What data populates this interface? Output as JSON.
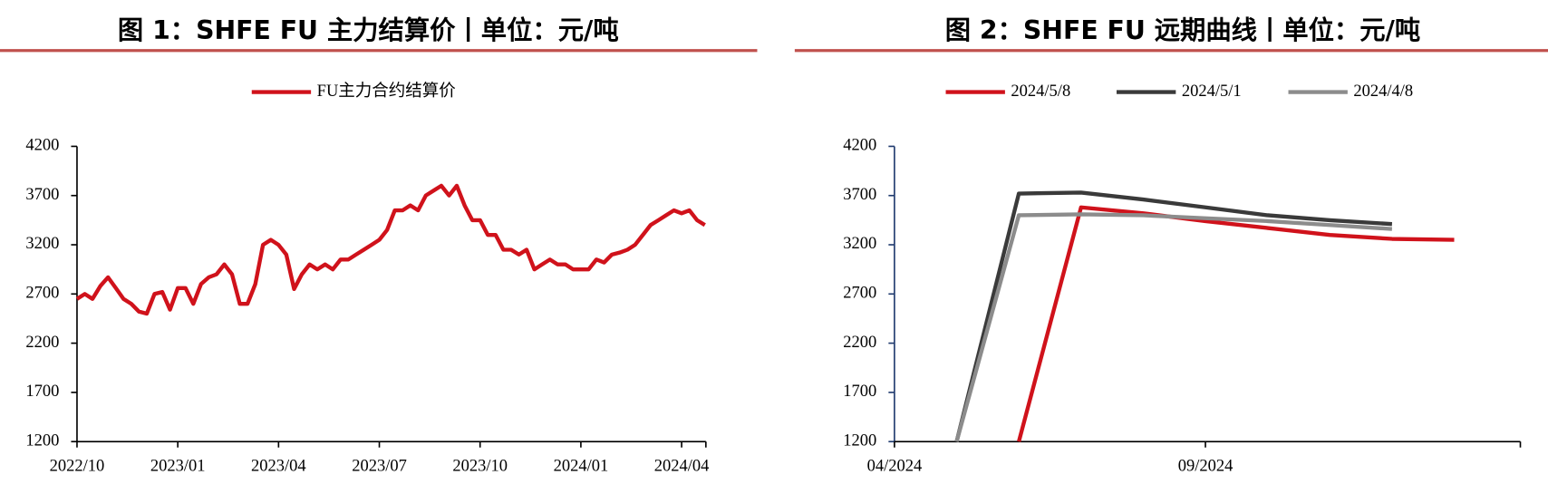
{
  "chart_data": [
    {
      "type": "line",
      "title": "图 1：SHFE FU 主力结算价丨单位：元/吨",
      "legend": "top",
      "axis_color": "#000000",
      "categories": [
        "2022/10",
        null,
        null,
        null,
        null,
        null,
        null,
        null,
        null,
        null,
        null,
        null,
        null,
        "2023/01",
        null,
        null,
        null,
        null,
        null,
        null,
        null,
        null,
        null,
        null,
        null,
        null,
        "2023/04",
        null,
        null,
        null,
        null,
        null,
        null,
        null,
        null,
        null,
        null,
        null,
        null,
        "2023/07",
        null,
        null,
        null,
        null,
        null,
        null,
        null,
        null,
        null,
        null,
        null,
        null,
        "2023/10",
        null,
        null,
        null,
        null,
        null,
        null,
        null,
        null,
        null,
        null,
        null,
        null,
        "2024/01",
        null,
        null,
        null,
        null,
        null,
        null,
        null,
        null,
        null,
        null,
        null,
        null,
        "2024/04",
        null,
        null,
        null
      ],
      "series": [
        {
          "name": "FU主力合约结算价",
          "color": "#d0121b",
          "values": [
            2650,
            2700,
            2650,
            2780,
            2870,
            2760,
            2650,
            2600,
            2520,
            2500,
            2700,
            2720,
            2540,
            2760,
            2760,
            2600,
            2800,
            2870,
            2900,
            3000,
            2900,
            2600,
            2600,
            2800,
            3200,
            3250,
            3200,
            3100,
            2750,
            2900,
            3000,
            2950,
            3000,
            2950,
            3050,
            3050,
            3100,
            3150,
            3200,
            3250,
            3350,
            3550,
            3550,
            3600,
            3550,
            3700,
            3750,
            3800,
            3700,
            3800,
            3600,
            3450,
            3450,
            3300,
            3300,
            3150,
            3150,
            3100,
            3150,
            2950,
            3000,
            3050,
            3000,
            3000,
            2950,
            2950,
            2950,
            3050,
            3020,
            3100,
            3120,
            3150,
            3200,
            3300,
            3400,
            3450,
            3500,
            3550,
            3520,
            3550,
            3450,
            3400
          ]
        }
      ],
      "ylim": [
        1200,
        4200
      ],
      "yticks": [
        1200,
        1700,
        2200,
        2700,
        3200,
        3700,
        4200
      ]
    },
    {
      "type": "line",
      "title": "图 2：SHFE FU 远期曲线丨单位：元/吨",
      "legend": "top",
      "axis_color": "#1f3a6e",
      "categories": [
        "04/2024",
        null,
        null,
        null,
        null,
        "09/2024",
        null,
        null,
        null,
        null,
        null
      ],
      "series": [
        {
          "name": "2024/5/8",
          "color": "#d0121b",
          "values": [
            null,
            null,
            1200,
            3580,
            3520,
            3440,
            3370,
            3300,
            3260,
            3250,
            null
          ]
        },
        {
          "name": "2024/5/1",
          "color": "#3a3a3a",
          "values": [
            null,
            1200,
            3720,
            3730,
            3660,
            3580,
            3500,
            3450,
            3410,
            null,
            null
          ]
        },
        {
          "name": "2024/4/8",
          "color": "#8c8c8c",
          "values": [
            null,
            1200,
            3500,
            3510,
            3500,
            3470,
            3440,
            3400,
            3360,
            null,
            null
          ]
        }
      ],
      "ylim": [
        1200,
        4200
      ],
      "yticks": [
        1200,
        1700,
        2200,
        2700,
        3200,
        3700,
        4200
      ]
    }
  ]
}
